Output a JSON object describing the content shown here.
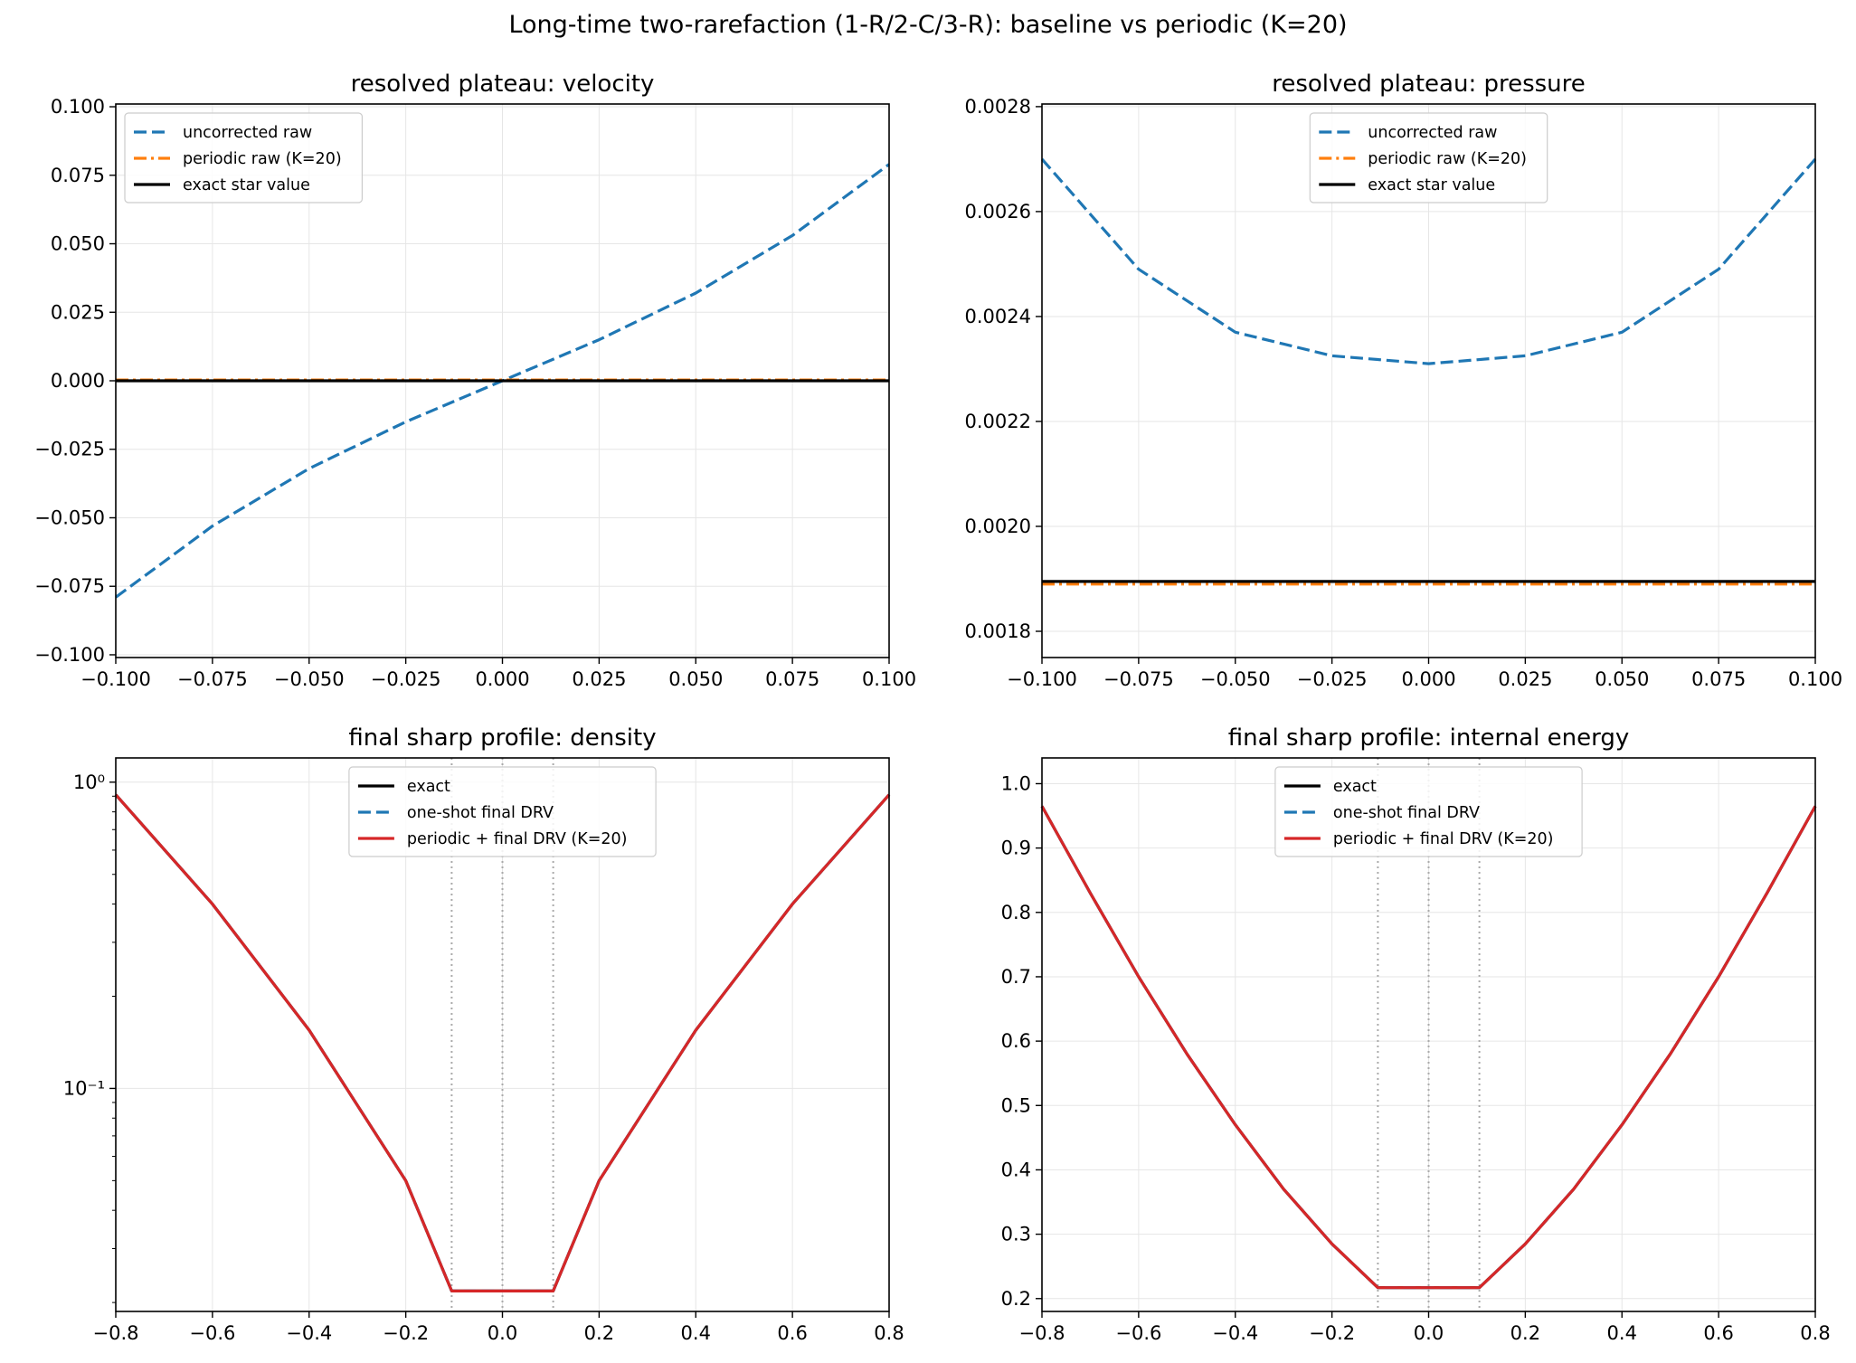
{
  "figure_title": "Long-time two-rarefaction (1-R/2-C/3-R): baseline vs periodic (K=20)",
  "colors": {
    "blue": "#1f77b4",
    "orange": "#ff7f0e",
    "black": "#000000",
    "red": "#d62728",
    "vline": "#aaaaaa",
    "grid": "#e6e6e6"
  },
  "chart_data": [
    {
      "id": "velocity",
      "type": "line",
      "title": "resolved plateau: velocity",
      "xlim": [
        -0.1,
        0.1
      ],
      "ylim": [
        -0.101,
        0.101
      ],
      "xticks": [
        -0.1,
        -0.075,
        -0.05,
        -0.025,
        0.0,
        0.025,
        0.05,
        0.075,
        0.1
      ],
      "xtick_labels": [
        "−0.100",
        "−0.075",
        "−0.050",
        "−0.025",
        "0.000",
        "0.025",
        "0.050",
        "0.075",
        "0.100"
      ],
      "yticks": [
        -0.1,
        -0.075,
        -0.05,
        -0.025,
        0.0,
        0.025,
        0.05,
        0.075,
        0.1
      ],
      "ytick_labels": [
        "−0.100",
        "−0.075",
        "−0.050",
        "−0.025",
        "0.000",
        "0.025",
        "0.050",
        "0.075",
        "0.100"
      ],
      "legend_position": "upper-left",
      "series": [
        {
          "name": "uncorrected raw",
          "style": "dashed",
          "color": "#1f77b4",
          "x": [
            -0.1,
            -0.075,
            -0.05,
            -0.025,
            0.0,
            0.025,
            0.05,
            0.075,
            0.1
          ],
          "y": [
            -0.079,
            -0.053,
            -0.032,
            -0.015,
            0.0,
            0.015,
            0.032,
            0.053,
            0.079
          ]
        },
        {
          "name": "periodic raw (K=20)",
          "style": "dashdot",
          "color": "#ff7f0e",
          "x": [
            -0.1,
            0.1
          ],
          "y": [
            0.0003,
            0.0003
          ]
        },
        {
          "name": "exact star value",
          "style": "solid",
          "color": "#000000",
          "x": [
            -0.1,
            0.1
          ],
          "y": [
            0.0,
            0.0
          ]
        }
      ]
    },
    {
      "id": "pressure",
      "type": "line",
      "title": "resolved plateau: pressure",
      "xlim": [
        -0.1,
        0.1
      ],
      "ylim": [
        0.00175,
        0.002805
      ],
      "xticks": [
        -0.1,
        -0.075,
        -0.05,
        -0.025,
        0.0,
        0.025,
        0.05,
        0.075,
        0.1
      ],
      "xtick_labels": [
        "−0.100",
        "−0.075",
        "−0.050",
        "−0.025",
        "0.000",
        "0.025",
        "0.050",
        "0.075",
        "0.100"
      ],
      "yticks": [
        0.0018,
        0.002,
        0.0022,
        0.0024,
        0.0026,
        0.0028
      ],
      "ytick_labels": [
        "0.0018",
        "0.0020",
        "0.0022",
        "0.0024",
        "0.0026",
        "0.0028"
      ],
      "legend_position": "upper-center",
      "series": [
        {
          "name": "uncorrected raw",
          "style": "dashed",
          "color": "#1f77b4",
          "x": [
            -0.1,
            -0.075,
            -0.05,
            -0.025,
            0.0,
            0.025,
            0.05,
            0.075,
            0.1
          ],
          "y": [
            0.0027,
            0.00249,
            0.00237,
            0.002325,
            0.00231,
            0.002325,
            0.00237,
            0.00249,
            0.0027
          ]
        },
        {
          "name": "periodic raw (K=20)",
          "style": "dashdot",
          "color": "#ff7f0e",
          "x": [
            -0.1,
            0.1
          ],
          "y": [
            0.00189,
            0.00189
          ]
        },
        {
          "name": "exact star value",
          "style": "solid",
          "color": "#000000",
          "x": [
            -0.1,
            0.1
          ],
          "y": [
            0.001895,
            0.001895
          ]
        }
      ]
    },
    {
      "id": "density",
      "type": "line",
      "yscale": "log",
      "title": "final sharp profile: density",
      "xlim": [
        -0.8,
        0.8
      ],
      "ylim": [
        0.0187,
        1.2
      ],
      "xticks": [
        -0.8,
        -0.6,
        -0.4,
        -0.2,
        0.0,
        0.2,
        0.4,
        0.6,
        0.8
      ],
      "xtick_labels": [
        "−0.8",
        "−0.6",
        "−0.4",
        "−0.2",
        "0.0",
        "0.2",
        "0.4",
        "0.6",
        "0.8"
      ],
      "ytick_major": [
        0.1,
        1.0
      ],
      "ytick_major_labels": [
        "10⁻¹",
        "10⁰"
      ],
      "vlines": [
        -0.105,
        0.0,
        0.105
      ],
      "legend_position": "upper-center",
      "series": [
        {
          "name": "exact",
          "style": "solid",
          "color": "#000000",
          "x": [
            -0.8,
            -0.6,
            -0.4,
            -0.2,
            -0.105,
            0.105,
            0.2,
            0.4,
            0.6,
            0.8
          ],
          "y": [
            0.91,
            0.4,
            0.155,
            0.05,
            0.0218,
            0.0218,
            0.05,
            0.155,
            0.4,
            0.91
          ]
        },
        {
          "name": "one-shot final DRV",
          "style": "dashed",
          "color": "#1f77b4",
          "x": [
            -0.8,
            -0.6,
            -0.4,
            -0.2,
            -0.105,
            0.105,
            0.2,
            0.4,
            0.6,
            0.8
          ],
          "y": [
            0.91,
            0.4,
            0.155,
            0.05,
            0.0218,
            0.0218,
            0.05,
            0.155,
            0.4,
            0.91
          ]
        },
        {
          "name": "periodic + final DRV (K=20)",
          "style": "solid",
          "color": "#d62728",
          "x": [
            -0.8,
            -0.6,
            -0.4,
            -0.2,
            -0.105,
            0.105,
            0.2,
            0.4,
            0.6,
            0.8
          ],
          "y": [
            0.91,
            0.4,
            0.155,
            0.05,
            0.0218,
            0.0218,
            0.05,
            0.155,
            0.4,
            0.91
          ]
        }
      ]
    },
    {
      "id": "energy",
      "type": "line",
      "title": "final sharp profile: internal energy",
      "xlim": [
        -0.8,
        0.8
      ],
      "ylim": [
        0.18,
        1.04
      ],
      "xticks": [
        -0.8,
        -0.6,
        -0.4,
        -0.2,
        0.0,
        0.2,
        0.4,
        0.6,
        0.8
      ],
      "xtick_labels": [
        "−0.8",
        "−0.6",
        "−0.4",
        "−0.2",
        "0.0",
        "0.2",
        "0.4",
        "0.6",
        "0.8"
      ],
      "yticks": [
        0.2,
        0.3,
        0.4,
        0.5,
        0.6,
        0.7,
        0.8,
        0.9,
        1.0
      ],
      "ytick_labels": [
        "0.2",
        "0.3",
        "0.4",
        "0.5",
        "0.6",
        "0.7",
        "0.8",
        "0.9",
        "1.0"
      ],
      "vlines": [
        -0.105,
        0.0,
        0.105
      ],
      "legend_position": "upper-center",
      "series": [
        {
          "name": "exact",
          "style": "solid",
          "color": "#000000",
          "x": [
            -0.8,
            -0.7,
            -0.6,
            -0.5,
            -0.4,
            -0.3,
            -0.2,
            -0.105,
            0.105,
            0.2,
            0.3,
            0.4,
            0.5,
            0.6,
            0.7,
            0.8
          ],
          "y": [
            0.965,
            0.83,
            0.7,
            0.58,
            0.47,
            0.37,
            0.285,
            0.217,
            0.217,
            0.285,
            0.37,
            0.47,
            0.58,
            0.7,
            0.83,
            0.965
          ]
        },
        {
          "name": "one-shot final DRV",
          "style": "dashed",
          "color": "#1f77b4",
          "x": [
            -0.8,
            -0.7,
            -0.6,
            -0.5,
            -0.4,
            -0.3,
            -0.2,
            -0.105,
            0.105,
            0.2,
            0.3,
            0.4,
            0.5,
            0.6,
            0.7,
            0.8
          ],
          "y": [
            0.965,
            0.83,
            0.7,
            0.58,
            0.47,
            0.37,
            0.285,
            0.217,
            0.217,
            0.285,
            0.37,
            0.47,
            0.58,
            0.7,
            0.83,
            0.965
          ]
        },
        {
          "name": "periodic + final DRV (K=20)",
          "style": "solid",
          "color": "#d62728",
          "x": [
            -0.8,
            -0.7,
            -0.6,
            -0.5,
            -0.4,
            -0.3,
            -0.2,
            -0.105,
            0.105,
            0.2,
            0.3,
            0.4,
            0.5,
            0.6,
            0.7,
            0.8
          ],
          "y": [
            0.965,
            0.83,
            0.7,
            0.58,
            0.47,
            0.37,
            0.285,
            0.217,
            0.217,
            0.285,
            0.37,
            0.47,
            0.58,
            0.7,
            0.83,
            0.965
          ]
        }
      ]
    }
  ]
}
